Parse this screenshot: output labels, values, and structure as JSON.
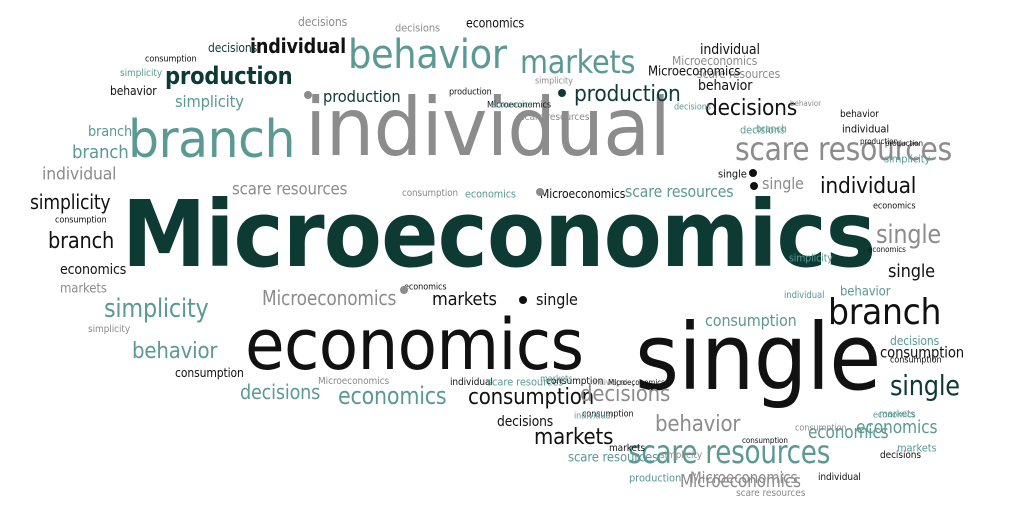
{
  "colors": {
    "dark": "#0d3b34",
    "black": "#111111",
    "grey": "#8c8c8c",
    "teal": "#5a9994",
    "lightgrey": "#a5a5a5"
  },
  "words": [
    {
      "text": "Microeconomics",
      "color": "dark"
    },
    {
      "text": "individual",
      "color": "grey"
    },
    {
      "text": "single",
      "color": "black"
    },
    {
      "text": "economics",
      "color": "black"
    },
    {
      "text": "branch",
      "color": "teal"
    },
    {
      "text": "behavior",
      "color": "teal"
    },
    {
      "text": "markets",
      "color": "teal"
    },
    {
      "text": "individual",
      "color": "black"
    },
    {
      "text": "decisions",
      "color": "grey"
    },
    {
      "text": "decisions",
      "color": "dark"
    },
    {
      "text": "production",
      "color": "dark"
    },
    {
      "text": "production",
      "color": "dark"
    },
    {
      "text": "production",
      "color": "dark"
    },
    {
      "text": "simplicity",
      "color": "teal"
    },
    {
      "text": "branch",
      "color": "teal"
    },
    {
      "text": "branch",
      "color": "teal"
    },
    {
      "text": "individual",
      "color": "grey"
    },
    {
      "text": "simplicity",
      "color": "black"
    },
    {
      "text": "branch",
      "color": "black"
    },
    {
      "text": "economics",
      "color": "black"
    },
    {
      "text": "markets",
      "color": "grey"
    },
    {
      "text": "simplicity",
      "color": "teal"
    },
    {
      "text": "behavior",
      "color": "teal"
    },
    {
      "text": "consumption",
      "color": "black"
    },
    {
      "text": "decisions",
      "color": "teal"
    },
    {
      "text": "economics",
      "color": "teal"
    },
    {
      "text": "consumption",
      "color": "black"
    },
    {
      "text": "markets",
      "color": "black"
    },
    {
      "text": "scare resources",
      "color": "teal"
    },
    {
      "text": "behavior",
      "color": "grey"
    },
    {
      "text": "branch",
      "color": "black"
    },
    {
      "text": "single",
      "color": "dark"
    },
    {
      "text": "consumption",
      "color": "black"
    },
    {
      "text": "single",
      "color": "grey"
    },
    {
      "text": "single",
      "color": "black"
    },
    {
      "text": "individual",
      "color": "black"
    },
    {
      "text": "scare resources",
      "color": "grey"
    },
    {
      "text": "scare resources",
      "color": "teal"
    },
    {
      "text": "Microeconomics",
      "color": "grey"
    },
    {
      "text": "markets",
      "color": "black"
    },
    {
      "text": "single",
      "color": "black"
    },
    {
      "text": "single",
      "color": "grey"
    },
    {
      "text": "consumption",
      "color": "teal"
    },
    {
      "text": "economics",
      "color": "teal"
    },
    {
      "text": "Microeconomics",
      "color": "grey"
    },
    {
      "text": "Microeconomics",
      "color": "black"
    },
    {
      "text": "individual",
      "color": "black"
    },
    {
      "text": "behavior",
      "color": "black"
    },
    {
      "text": "decisions",
      "color": "black"
    },
    {
      "text": "economics",
      "color": "black"
    },
    {
      "text": "consumption",
      "color": "black"
    },
    {
      "text": "behavior",
      "color": "black"
    },
    {
      "text": "decisions",
      "color": "grey"
    },
    {
      "text": "scare resources",
      "color": "grey"
    },
    {
      "text": "consumption",
      "color": "grey"
    },
    {
      "text": "economics",
      "color": "teal"
    },
    {
      "text": "single",
      "color": "black"
    },
    {
      "text": "decisions",
      "color": "teal"
    },
    {
      "text": "simplicity",
      "color": "teal"
    },
    {
      "text": "consumption",
      "color": "black"
    },
    {
      "text": "simplicity",
      "color": "grey"
    },
    {
      "text": "production",
      "color": "black"
    },
    {
      "text": "Microeconomics",
      "color": "black"
    },
    {
      "text": "economics",
      "color": "black"
    },
    {
      "text": "Microeconomics",
      "color": "grey"
    },
    {
      "text": "individual",
      "color": "black"
    },
    {
      "text": "decisions",
      "color": "black"
    },
    {
      "text": "branch",
      "color": "teal"
    },
    {
      "text": "individual",
      "color": "black"
    },
    {
      "text": "production",
      "color": "black"
    },
    {
      "text": "simplicity",
      "color": "teal"
    },
    {
      "text": "consumption",
      "color": "black"
    },
    {
      "text": "simplicity",
      "color": "teal"
    },
    {
      "text": "behavior",
      "color": "teal"
    },
    {
      "text": "decisions",
      "color": "teal"
    },
    {
      "text": "economics",
      "color": "teal"
    },
    {
      "text": "consumption",
      "color": "black"
    },
    {
      "text": "markets",
      "color": "teal"
    },
    {
      "text": "Microeconomics",
      "color": "grey"
    },
    {
      "text": "scare resources",
      "color": "grey"
    },
    {
      "text": "Microeconomics",
      "color": "black"
    },
    {
      "text": "economics",
      "color": "black"
    },
    {
      "text": "individual",
      "color": "teal"
    },
    {
      "text": "scare resources",
      "color": "teal"
    },
    {
      "text": "consumption",
      "color": "black"
    },
    {
      "text": "decisions",
      "color": "grey"
    },
    {
      "text": "markets",
      "color": "black"
    },
    {
      "text": "simplicity",
      "color": "grey"
    },
    {
      "text": "scare resources",
      "color": "teal"
    },
    {
      "text": "production",
      "color": "teal"
    },
    {
      "text": "Microeconomics",
      "color": "grey"
    },
    {
      "text": "scare resources",
      "color": "grey"
    },
    {
      "text": "individual",
      "color": "black"
    },
    {
      "text": "markets",
      "color": "teal"
    },
    {
      "text": "behavior",
      "color": "black"
    },
    {
      "text": "production",
      "color": "black"
    },
    {
      "text": "simplicity",
      "color": "grey"
    },
    {
      "text": "behavior",
      "color": "grey"
    },
    {
      "text": "economics",
      "color": "teal"
    },
    {
      "text": "decisions",
      "color": "black"
    },
    {
      "text": "individual",
      "color": "grey"
    },
    {
      "text": "consumption",
      "color": "black"
    },
    {
      "text": "economics",
      "color": "black"
    },
    {
      "text": "decisions",
      "color": "teal"
    },
    {
      "text": "scare resources",
      "color": "grey"
    },
    {
      "text": "Microeconomics",
      "color": "black"
    },
    {
      "text": "economics",
      "color": "teal"
    },
    {
      "text": "markets",
      "color": "teal"
    },
    {
      "text": "individual",
      "color": "teal"
    },
    {
      "text": "consumption",
      "color": "grey"
    }
  ],
  "dots": [
    {
      "color": "grey"
    },
    {
      "color": "dark"
    },
    {
      "color": "black"
    },
    {
      "color": "black"
    },
    {
      "color": "grey"
    },
    {
      "color": "black"
    },
    {
      "color": "grey"
    }
  ]
}
